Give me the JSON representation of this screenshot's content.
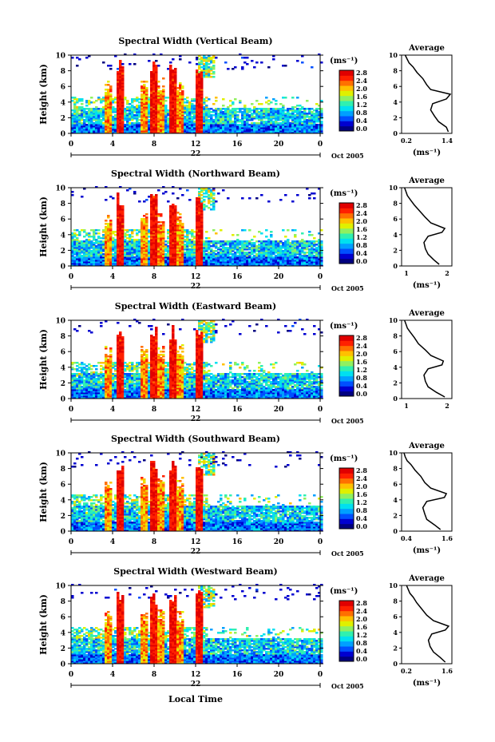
{
  "colorbar": {
    "unit_label": "(ms⁻¹)",
    "ticks": [
      "2.8",
      "2.4",
      "2.0",
      "1.6",
      "1.2",
      "0.8",
      "0.4",
      "0.0"
    ],
    "colors": [
      "#000080",
      "#0000d0",
      "#0050ff",
      "#00a0ff",
      "#00e0f0",
      "#30f0b0",
      "#90f060",
      "#e0f000",
      "#ffc000",
      "#ff7000",
      "#ff2000",
      "#e00000"
    ]
  },
  "common": {
    "ylabel": "Height (km)",
    "yticks": [
      "0",
      "2",
      "4",
      "6",
      "8",
      "10"
    ],
    "xticks": [
      "0",
      "4",
      "8",
      "12",
      "16",
      "20",
      "0"
    ],
    "date_day": "22",
    "date_month": "Oct 2005",
    "avg_title": "Average",
    "avg_xlabel": "(ms⁻¹)",
    "xlabel": "Local Time"
  },
  "chart_data": [
    {
      "type": "heatmap",
      "title": "Spectral Width (Vertical Beam)",
      "ylabel": "Height (km)",
      "ylim": [
        0,
        10
      ],
      "xlim": [
        0,
        24
      ],
      "avg_profile": {
        "title": "Average",
        "xlabel": "(ms⁻¹)",
        "xticks": [
          "0.2",
          "1.4"
        ],
        "xlim": [
          0.2,
          1.4
        ],
        "x": [
          1.35,
          1.3,
          1.1,
          1.0,
          0.9,
          0.95,
          1.3,
          1.4,
          0.9,
          0.8,
          0.7,
          0.55,
          0.45,
          0.35,
          0.3,
          0.25
        ],
        "y": [
          0.2,
          0.8,
          1.5,
          2.2,
          3.0,
          3.8,
          4.4,
          5.0,
          5.6,
          6.2,
          7.0,
          7.8,
          8.5,
          9.0,
          9.5,
          10.0
        ]
      }
    },
    {
      "type": "heatmap",
      "title": "Spectral Width (Northward Beam)",
      "ylabel": "Height (km)",
      "ylim": [
        0,
        10
      ],
      "xlim": [
        0,
        24
      ],
      "avg_profile": {
        "title": "Average",
        "xlabel": "(ms⁻¹)",
        "xticks": [
          "1",
          "2"
        ],
        "xlim": [
          0.5,
          2.2
        ],
        "x": [
          1.8,
          1.6,
          1.4,
          1.3,
          1.25,
          1.4,
          1.9,
          2.0,
          1.5,
          1.3,
          1.1,
          0.9,
          0.75,
          0.65,
          0.6,
          0.55
        ],
        "y": [
          0.2,
          0.8,
          1.5,
          2.2,
          3.0,
          3.8,
          4.3,
          4.8,
          5.5,
          6.2,
          7.0,
          7.8,
          8.5,
          9.0,
          9.5,
          10.0
        ]
      }
    },
    {
      "type": "heatmap",
      "title": "Spectral Width (Eastward Beam)",
      "ylabel": "Height (km)",
      "ylim": [
        0,
        10
      ],
      "xlim": [
        0,
        24
      ],
      "avg_profile": {
        "title": "Average",
        "xlabel": "",
        "xticks": [
          "1",
          "2"
        ],
        "xlim": [
          0.5,
          2.2
        ],
        "x": [
          2.0,
          1.7,
          1.4,
          1.3,
          1.25,
          1.4,
          1.9,
          1.95,
          1.5,
          1.3,
          1.05,
          0.9,
          0.75,
          0.65,
          0.6,
          0.55
        ],
        "y": [
          0.2,
          0.8,
          1.5,
          2.2,
          3.0,
          3.8,
          4.3,
          4.8,
          5.5,
          6.2,
          7.0,
          7.8,
          8.5,
          9.0,
          9.5,
          10.0
        ]
      }
    },
    {
      "type": "heatmap",
      "title": "Spectral Width (Southward Beam)",
      "ylabel": "Height (km)",
      "ylim": [
        0,
        10
      ],
      "xlim": [
        0,
        24
      ],
      "avg_profile": {
        "title": "Average",
        "xlabel": "(ms⁻¹)",
        "xticks": [
          "0.4",
          "1.6"
        ],
        "xlim": [
          0.4,
          1.6
        ],
        "x": [
          1.35,
          1.2,
          1.0,
          0.95,
          0.9,
          1.0,
          1.45,
          1.5,
          1.1,
          0.95,
          0.85,
          0.7,
          0.6,
          0.5,
          0.45,
          0.42
        ],
        "y": [
          0.2,
          0.8,
          1.5,
          2.2,
          3.0,
          3.8,
          4.3,
          4.8,
          5.5,
          6.2,
          7.0,
          7.8,
          8.5,
          9.0,
          9.5,
          10.0
        ]
      }
    },
    {
      "type": "heatmap",
      "title": "Spectral Width (Westward Beam)",
      "ylabel": "Height (km)",
      "ylim": [
        0,
        10
      ],
      "xlim": [
        0,
        24
      ],
      "avg_profile": {
        "title": "Average",
        "xlabel": "(ms⁻¹)",
        "xticks": [
          "0.2",
          "1.6"
        ],
        "xlim": [
          0.2,
          1.6
        ],
        "x": [
          1.45,
          1.3,
          1.1,
          1.0,
          0.95,
          1.05,
          1.45,
          1.55,
          1.1,
          0.9,
          0.75,
          0.6,
          0.5,
          0.4,
          0.35,
          0.3
        ],
        "y": [
          0.2,
          0.8,
          1.5,
          2.2,
          3.0,
          3.8,
          4.3,
          4.8,
          5.5,
          6.2,
          7.0,
          7.8,
          8.5,
          9.0,
          9.5,
          10.0
        ]
      }
    }
  ]
}
